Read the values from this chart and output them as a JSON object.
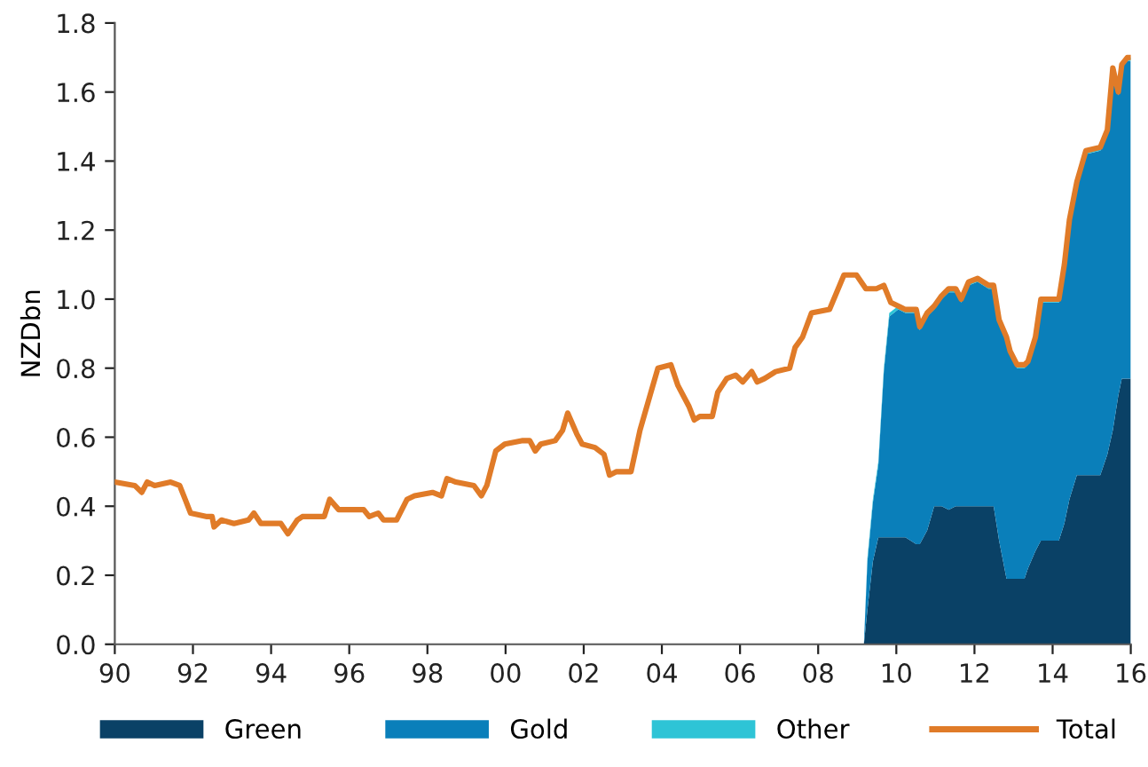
{
  "chart_data": {
    "type": "area",
    "ylabel": "NZDbn",
    "stacked": true,
    "legend": "bottom",
    "grid": false,
    "xlim": [
      1990,
      2016
    ],
    "ylim": [
      0,
      1.8
    ],
    "xticks": [
      {
        "value": 1990,
        "label": "90"
      },
      {
        "value": 1992,
        "label": "92"
      },
      {
        "value": 1994,
        "label": "94"
      },
      {
        "value": 1996,
        "label": "96"
      },
      {
        "value": 1998,
        "label": "98"
      },
      {
        "value": 2000,
        "label": "00"
      },
      {
        "value": 2002,
        "label": "02"
      },
      {
        "value": 2004,
        "label": "04"
      },
      {
        "value": 2006,
        "label": "06"
      },
      {
        "value": 2008,
        "label": "08"
      },
      {
        "value": 2010,
        "label": "10"
      },
      {
        "value": 2012,
        "label": "12"
      },
      {
        "value": 2014,
        "label": "14"
      },
      {
        "value": 2016,
        "label": "16"
      }
    ],
    "yticks": [
      {
        "value": 0,
        "label": "0.0"
      },
      {
        "value": 0.2,
        "label": "0.2"
      },
      {
        "value": 0.4,
        "label": "0.4"
      },
      {
        "value": 0.6,
        "label": "0.6"
      },
      {
        "value": 0.8,
        "label": "0.8"
      },
      {
        "value": 1.0,
        "label": "1.0"
      },
      {
        "value": 1.2,
        "label": "1.2"
      },
      {
        "value": 1.4,
        "label": "1.4"
      },
      {
        "value": 1.6,
        "label": "1.6"
      },
      {
        "value": 1.8,
        "label": "1.8"
      }
    ],
    "series": [
      {
        "name": "Green",
        "color": "#0a4166",
        "x": [
          2009.17,
          2009.26,
          2009.4,
          2009.54,
          2009.68,
          2009.82,
          2010.05,
          2010.23,
          2010.51,
          2010.6,
          2010.79,
          2010.97,
          2011.16,
          2011.34,
          2011.52,
          2011.66,
          2011.85,
          2012.08,
          2012.36,
          2012.49,
          2012.63,
          2012.82,
          2012.91,
          2013.09,
          2013.28,
          2013.37,
          2013.56,
          2013.7,
          2013.83,
          2014.16,
          2014.3,
          2014.43,
          2014.62,
          2014.85,
          2015.22,
          2015.4,
          2015.54,
          2015.68,
          2015.77,
          2015.91,
          2016.0
        ],
        "values": [
          0,
          0.1,
          0.24,
          0.31,
          0.31,
          0.31,
          0.31,
          0.31,
          0.29,
          0.29,
          0.33,
          0.4,
          0.4,
          0.39,
          0.4,
          0.4,
          0.4,
          0.4,
          0.4,
          0.4,
          0.3,
          0.19,
          0.19,
          0.19,
          0.19,
          0.22,
          0.27,
          0.3,
          0.3,
          0.3,
          0.35,
          0.42,
          0.49,
          0.49,
          0.49,
          0.55,
          0.62,
          0.72,
          0.77,
          0.77,
          0.77
        ]
      },
      {
        "name": "Gold",
        "color": "#0a7fba",
        "x": [
          2009.17,
          2009.26,
          2009.4,
          2009.54,
          2009.68,
          2009.82,
          2010.05,
          2010.23,
          2010.51,
          2010.6,
          2010.79,
          2010.97,
          2011.16,
          2011.34,
          2011.52,
          2011.66,
          2011.85,
          2012.08,
          2012.36,
          2012.49,
          2012.63,
          2012.82,
          2012.91,
          2013.09,
          2013.28,
          2013.37,
          2013.56,
          2013.7,
          2013.83,
          2014.16,
          2014.3,
          2014.43,
          2014.62,
          2014.85,
          2015.22,
          2015.4,
          2015.54,
          2015.68,
          2015.77,
          2015.91,
          2016.0
        ],
        "values": [
          0,
          0.14,
          0.17,
          0.21,
          0.48,
          0.64,
          0.66,
          0.65,
          0.67,
          0.62,
          0.62,
          0.57,
          0.6,
          0.63,
          0.62,
          0.59,
          0.64,
          0.65,
          0.63,
          0.63,
          0.63,
          0.69,
          0.65,
          0.61,
          0.61,
          0.59,
          0.61,
          0.69,
          0.69,
          0.69,
          0.74,
          0.8,
          0.84,
          0.93,
          0.94,
          0.93,
          1.04,
          0.87,
          0.9,
          0.92,
          0.92
        ]
      },
      {
        "name": "Other",
        "color": "#2ec4d6",
        "x": [
          2009.17,
          2009.26,
          2009.4,
          2009.54,
          2009.68,
          2009.82,
          2010.05,
          2010.23,
          2010.51,
          2010.6,
          2010.79,
          2010.97,
          2011.16,
          2011.34,
          2011.52,
          2011.66,
          2011.85,
          2012.08,
          2012.36,
          2012.49,
          2012.63,
          2012.82,
          2012.91,
          2013.09,
          2013.28,
          2013.37,
          2013.56,
          2013.7,
          2013.83,
          2014.16,
          2014.3,
          2014.43,
          2014.62,
          2014.85,
          2015.22,
          2015.4,
          2015.54,
          2015.68,
          2015.77,
          2015.91,
          2016.0
        ],
        "values": [
          0,
          0.01,
          0.01,
          0.01,
          0.01,
          0.01,
          0.01,
          0.01,
          0.01,
          0.01,
          0.01,
          0.01,
          0.01,
          0.01,
          0.01,
          0.01,
          0.01,
          0.01,
          0.01,
          0.01,
          0.01,
          0.01,
          0.01,
          0.01,
          0.01,
          0.01,
          0.01,
          0.01,
          0.01,
          0.01,
          0.01,
          0.01,
          0.01,
          0.01,
          0.01,
          0.01,
          0.01,
          0.01,
          0.01,
          0.01,
          0.01
        ]
      },
      {
        "name": "Total",
        "type": "line",
        "color": "#e07b28",
        "x": [
          1990.0,
          1990.51,
          1990.69,
          1990.83,
          1991.02,
          1991.43,
          1991.66,
          1991.8,
          1991.94,
          1992.36,
          1992.49,
          1992.54,
          1992.73,
          1993.05,
          1993.42,
          1993.56,
          1993.74,
          1994.25,
          1994.43,
          1994.67,
          1994.8,
          1995.36,
          1995.5,
          1995.73,
          1995.96,
          1996.37,
          1996.51,
          1996.74,
          1996.88,
          1997.21,
          1997.48,
          1997.67,
          1998.13,
          1998.36,
          1998.5,
          1998.73,
          1999.19,
          1999.38,
          1999.52,
          1999.75,
          1999.98,
          2000.44,
          2000.62,
          2000.76,
          2000.9,
          2001.27,
          2001.46,
          2001.59,
          2001.82,
          2001.96,
          2002.29,
          2002.52,
          2002.66,
          2002.84,
          2003.21,
          2003.44,
          2003.72,
          2003.9,
          2004.23,
          2004.41,
          2004.69,
          2004.83,
          2004.97,
          2005.29,
          2005.43,
          2005.66,
          2005.89,
          2006.07,
          2006.3,
          2006.44,
          2006.63,
          2006.91,
          2007.27,
          2007.41,
          2007.6,
          2007.83,
          2008.29,
          2008.66,
          2008.98,
          2009.22,
          2009.49,
          2009.68,
          2009.86,
          2010.05,
          2010.23,
          2010.51,
          2010.6,
          2010.79,
          2010.97,
          2011.16,
          2011.34,
          2011.52,
          2011.66,
          2011.85,
          2012.08,
          2012.36,
          2012.49,
          2012.63,
          2012.82,
          2012.91,
          2013.09,
          2013.28,
          2013.37,
          2013.56,
          2013.7,
          2013.83,
          2014.16,
          2014.3,
          2014.43,
          2014.62,
          2014.85,
          2015.22,
          2015.4,
          2015.54,
          2015.68,
          2015.77,
          2015.91,
          2016.0
        ],
        "values": [
          0.47,
          0.46,
          0.44,
          0.47,
          0.46,
          0.47,
          0.46,
          0.42,
          0.38,
          0.37,
          0.37,
          0.34,
          0.36,
          0.35,
          0.36,
          0.38,
          0.35,
          0.35,
          0.32,
          0.36,
          0.37,
          0.37,
          0.42,
          0.39,
          0.39,
          0.39,
          0.37,
          0.38,
          0.36,
          0.36,
          0.42,
          0.43,
          0.44,
          0.43,
          0.48,
          0.47,
          0.46,
          0.43,
          0.46,
          0.56,
          0.58,
          0.59,
          0.59,
          0.56,
          0.58,
          0.59,
          0.62,
          0.67,
          0.61,
          0.58,
          0.57,
          0.55,
          0.49,
          0.5,
          0.5,
          0.62,
          0.73,
          0.8,
          0.81,
          0.75,
          0.69,
          0.65,
          0.66,
          0.66,
          0.73,
          0.77,
          0.78,
          0.76,
          0.79,
          0.76,
          0.77,
          0.79,
          0.8,
          0.86,
          0.89,
          0.96,
          0.97,
          1.07,
          1.07,
          1.03,
          1.03,
          1.04,
          0.99,
          0.98,
          0.97,
          0.97,
          0.92,
          0.96,
          0.98,
          1.01,
          1.03,
          1.03,
          1.0,
          1.05,
          1.06,
          1.04,
          1.04,
          0.94,
          0.89,
          0.85,
          0.81,
          0.81,
          0.82,
          0.89,
          1.0,
          1.0,
          1.0,
          1.1,
          1.23,
          1.34,
          1.43,
          1.44,
          1.49,
          1.67,
          1.6,
          1.68,
          1.7,
          1.7
        ]
      }
    ]
  }
}
